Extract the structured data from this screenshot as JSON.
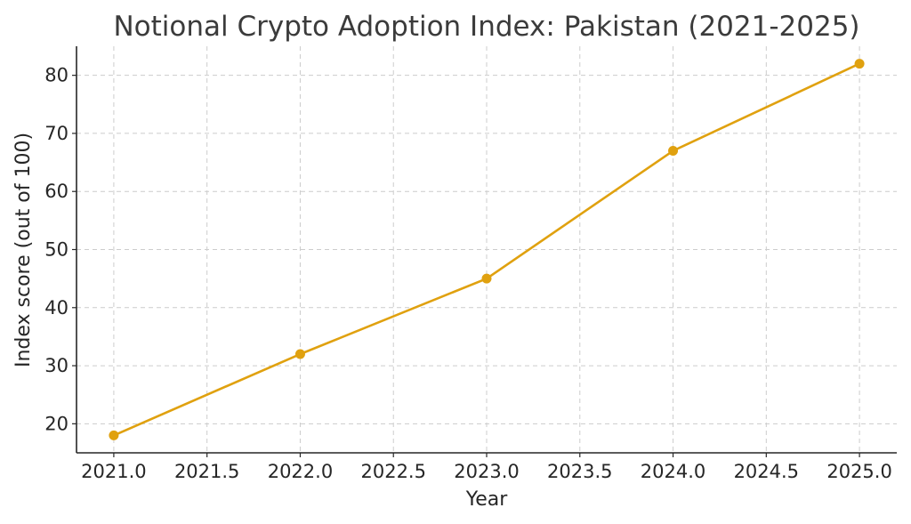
{
  "chart_data": {
    "type": "line",
    "title": "Notional Crypto Adoption Index: Pakistan (2021-2025)",
    "xlabel": "Year",
    "ylabel": "Index score (out of 100)",
    "x": [
      2021,
      2022,
      2023,
      2024,
      2025
    ],
    "series": [
      {
        "values": [
          18,
          32,
          45,
          67,
          82
        ]
      }
    ],
    "xlim": [
      2020.8,
      2025.2
    ],
    "ylim": [
      15,
      85
    ],
    "xticks": [
      2021.0,
      2021.5,
      2022.0,
      2022.5,
      2023.0,
      2023.5,
      2024.0,
      2024.5,
      2025.0
    ],
    "xtick_labels": [
      "2021.0",
      "2021.5",
      "2022.0",
      "2022.5",
      "2023.0",
      "2023.5",
      "2024.0",
      "2024.5",
      "2025.0"
    ],
    "yticks": [
      20,
      30,
      40,
      50,
      60,
      70,
      80
    ],
    "ytick_labels": [
      "20",
      "30",
      "40",
      "50",
      "60",
      "70",
      "80"
    ],
    "grid": true,
    "line_color": "#e0a10f",
    "marker": "circle"
  }
}
